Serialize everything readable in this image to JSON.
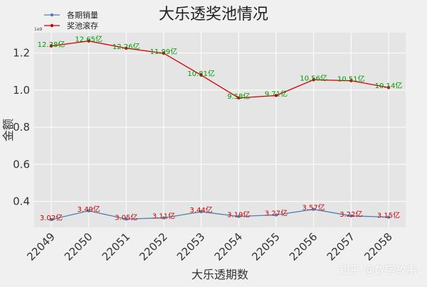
{
  "chart_data": {
    "type": "line",
    "title": "大乐透奖池情况",
    "xlabel": "大乐透期数",
    "ylabel": "金额",
    "scale_label": "1e9",
    "categories": [
      "22049",
      "22050",
      "22051",
      "22052",
      "22053",
      "22054",
      "22055",
      "22056",
      "22057",
      "22058"
    ],
    "x_tick_labels": [
      "22049",
      "22050",
      "22051",
      "22052",
      "22053",
      "22054",
      "22055",
      "22056",
      "22057",
      "22058"
    ],
    "y_ticks": [
      0.4,
      0.6,
      0.8,
      1.0,
      1.2
    ],
    "y_tick_labels": [
      "0.4",
      "0.6",
      "0.8",
      "1.0",
      "1.2"
    ],
    "ylim": [
      0.26,
      1.31
    ],
    "grid": true,
    "legend_position": "top-left",
    "series": [
      {
        "name": "各期销量",
        "color": "#4f7fb0",
        "label_color": "#cc0000",
        "values": [
          0.302,
          0.349,
          0.305,
          0.311,
          0.344,
          0.319,
          0.327,
          0.357,
          0.322,
          0.315
        ],
        "labels": [
          "3.02亿",
          "3.49亿",
          "3.05亿",
          "3.11亿",
          "3.44亿",
          "3.19亿",
          "3.27亿",
          "3.57亿",
          "3.22亿",
          "3.15亿"
        ]
      },
      {
        "name": "奖池滚存",
        "color": "#cc0000",
        "label_color": "#009900",
        "values": [
          1.238,
          1.265,
          1.226,
          1.199,
          1.081,
          0.958,
          0.971,
          1.056,
          1.051,
          1.014
        ],
        "labels": [
          "12.38亿",
          "12.65亿",
          "12.26亿",
          "11.99亿",
          "10.81亿",
          "9.58亿",
          "9.71亿",
          "10.56亿",
          "10.51亿",
          "10.14亿"
        ]
      }
    ]
  },
  "watermark": "知乎 @数字故事"
}
